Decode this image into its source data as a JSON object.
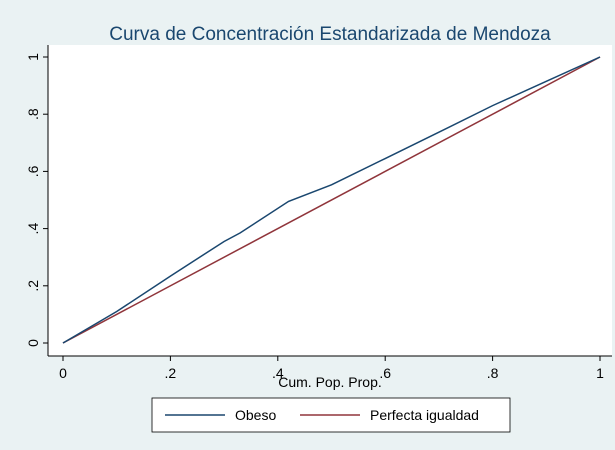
{
  "chart_data": {
    "type": "line",
    "title": "Curva de Concentración Estandarizada de Mendoza",
    "x_label": "Cum. Pop. Prop.",
    "series": [
      {
        "name": "Obeso",
        "color": "#1a476f",
        "x": [
          0,
          0.1,
          0.2,
          0.3,
          0.33,
          0.42,
          0.5,
          0.6,
          0.7,
          0.8,
          0.9,
          1
        ],
        "values": [
          0,
          0.11,
          0.234,
          0.355,
          0.385,
          0.495,
          0.553,
          0.645,
          0.737,
          0.83,
          0.915,
          1
        ]
      },
      {
        "name": "Perfecta igualdad",
        "color": "#90353b",
        "x": [
          0,
          1
        ],
        "values": [
          0,
          1
        ]
      }
    ],
    "xlim": [
      0,
      1
    ],
    "xticks": [
      0,
      {
        "value": 0.2,
        "label": ".2"
      },
      {
        "value": 0.4,
        "label": ".4"
      },
      {
        "value": 0.6,
        "label": ".6"
      },
      {
        "value": 0.8,
        "label": ".8"
      },
      1
    ],
    "ylim": [
      0,
      1
    ],
    "yticks": [
      0,
      {
        "value": 0.2,
        "label": ".2"
      },
      {
        "value": 0.4,
        "label": ".4"
      },
      {
        "value": 0.6,
        "label": ".6"
      },
      {
        "value": 0.8,
        "label": ".8"
      },
      1
    ],
    "grid": false,
    "legend": "bottom"
  }
}
